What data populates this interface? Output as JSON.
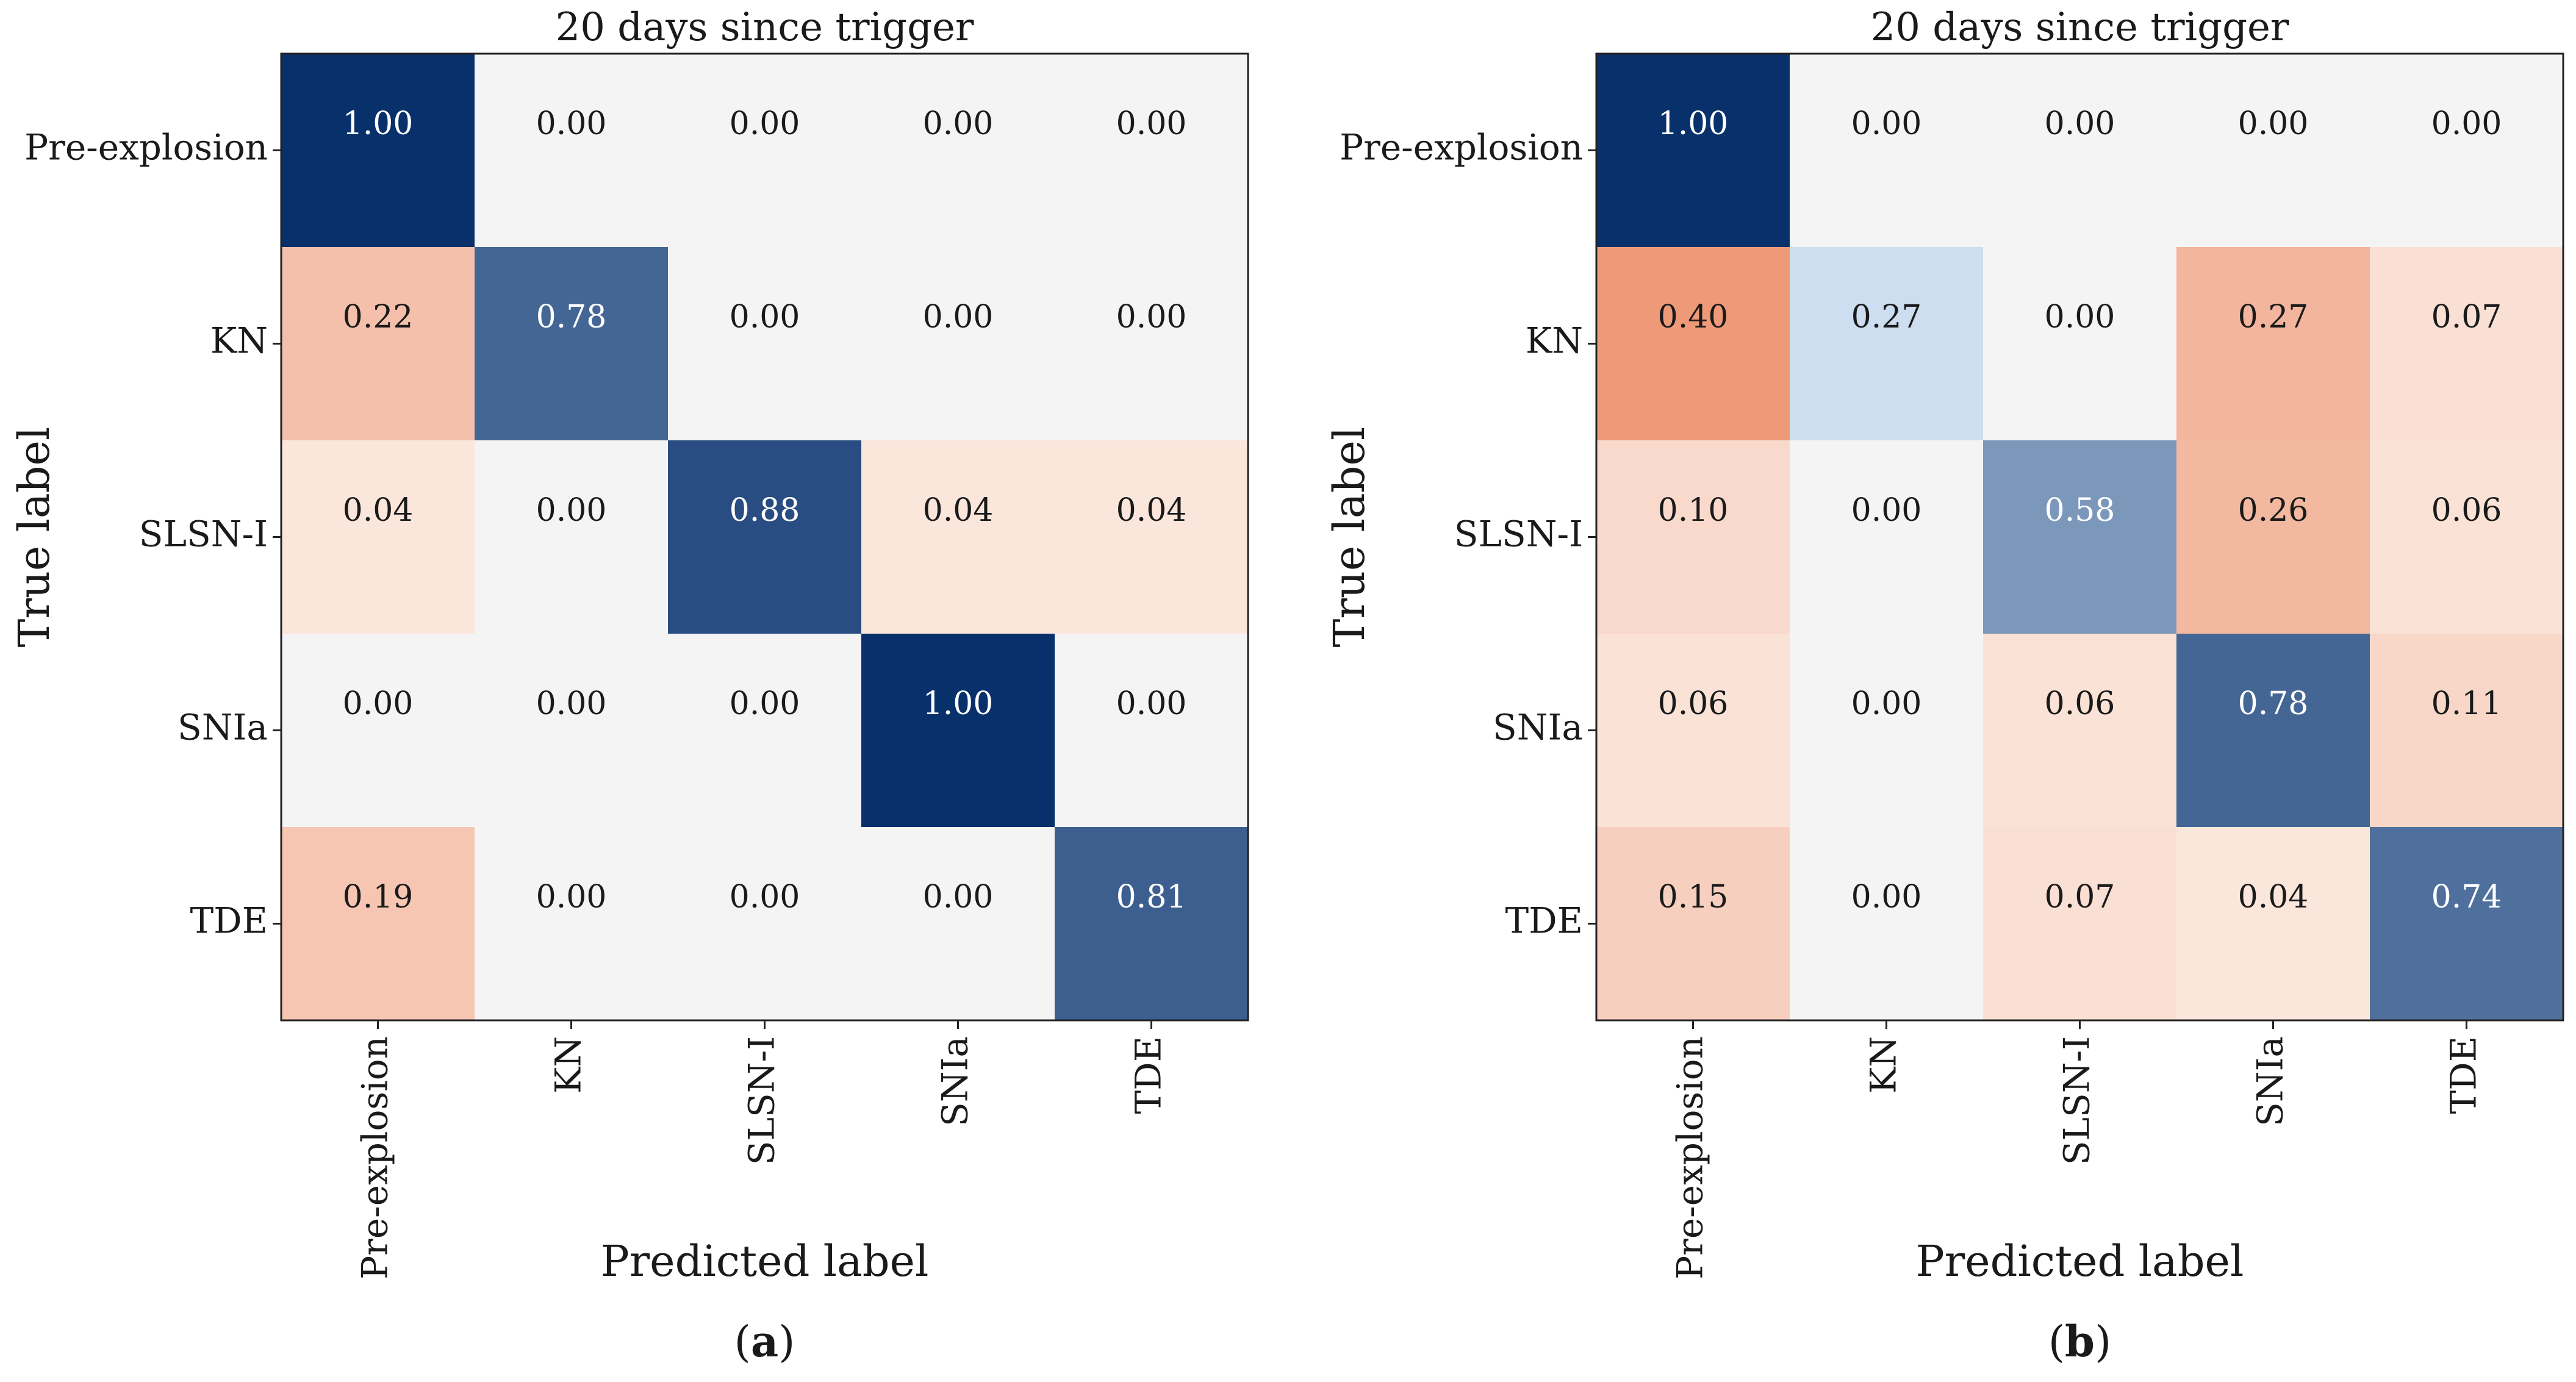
{
  "chart_data": [
    {
      "type": "heatmap",
      "title": "20 days since trigger",
      "xlabel": "Predicted label",
      "ylabel": "True label",
      "x_categories": [
        "Pre-explosion",
        "KN",
        "SLSN-I",
        "SNIa",
        "TDE"
      ],
      "y_categories": [
        "Pre-explosion",
        "KN",
        "SLSN-I",
        "SNIa",
        "TDE"
      ],
      "values": [
        [
          1.0,
          0.0,
          0.0,
          0.0,
          0.0
        ],
        [
          0.22,
          0.78,
          0.0,
          0.0,
          0.0
        ],
        [
          0.04,
          0.0,
          0.88,
          0.04,
          0.04
        ],
        [
          0.0,
          0.0,
          0.0,
          1.0,
          0.0
        ],
        [
          0.19,
          0.0,
          0.0,
          0.0,
          0.81
        ]
      ],
      "value_format": "0.00",
      "colormap": "blue diagonal / red off-diagonal",
      "caption_letter": "a"
    },
    {
      "type": "heatmap",
      "title": "20 days since trigger",
      "xlabel": "Predicted label",
      "ylabel": "True label",
      "x_categories": [
        "Pre-explosion",
        "KN",
        "SLSN-I",
        "SNIa",
        "TDE"
      ],
      "y_categories": [
        "Pre-explosion",
        "KN",
        "SLSN-I",
        "SNIa",
        "TDE"
      ],
      "values": [
        [
          1.0,
          0.0,
          0.0,
          0.0,
          0.0
        ],
        [
          0.4,
          0.27,
          0.0,
          0.27,
          0.07
        ],
        [
          0.1,
          0.0,
          0.58,
          0.26,
          0.06
        ],
        [
          0.06,
          0.0,
          0.06,
          0.78,
          0.11
        ],
        [
          0.15,
          0.0,
          0.07,
          0.04,
          0.74
        ]
      ],
      "value_format": "0.00",
      "colormap": "blue diagonal / red off-diagonal",
      "caption_letter": "b"
    }
  ],
  "colors": {
    "neutral": "#f4f4f4",
    "blue_low": "#c7dcef",
    "blue_high": "#08306b",
    "red_low": "#fbe6dc",
    "red_high": "#ee9a79",
    "frame": "#222222",
    "text_dark": "#1a1a1a",
    "text_light": "#ffffff"
  }
}
